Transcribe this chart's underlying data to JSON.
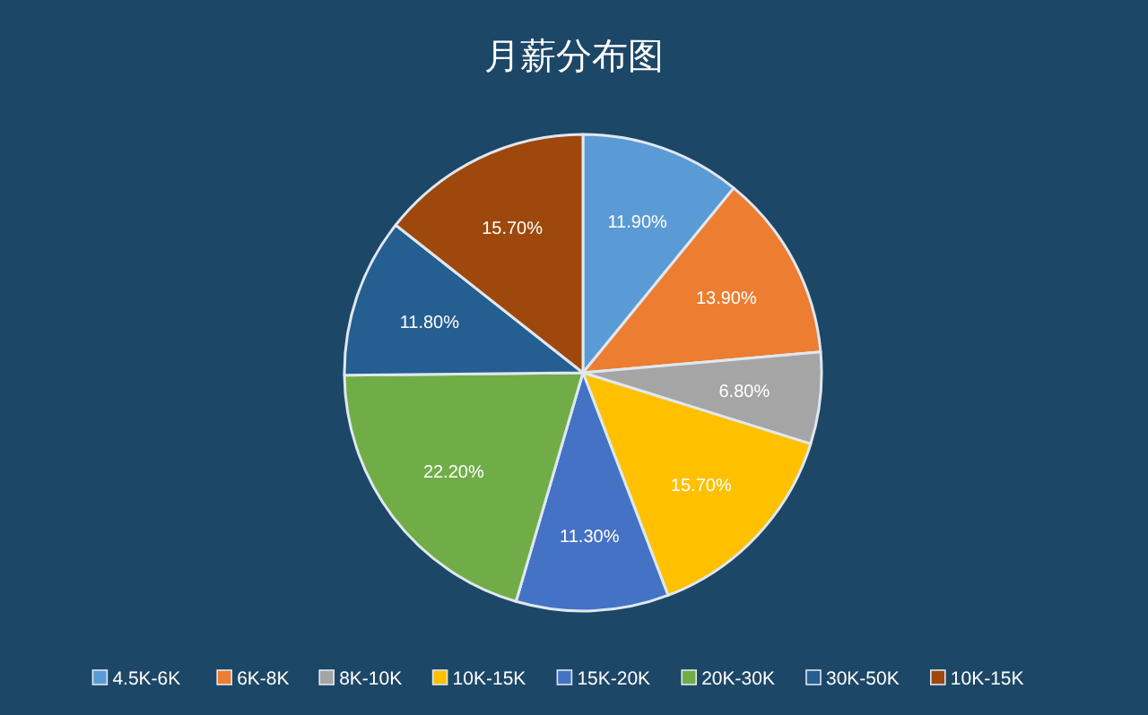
{
  "chart_data": {
    "type": "pie",
    "title": "月薪分布图",
    "categories": [
      "4.5K-6K",
      "6K-8K",
      "8K-10K",
      "10K-15K",
      "15K-20K",
      "20K-30K",
      "30K-50K",
      "10K-15K"
    ],
    "values": [
      11.9,
      13.9,
      6.8,
      15.7,
      11.3,
      22.2,
      11.8,
      15.7
    ],
    "value_labels": [
      "11.90%",
      "13.90%",
      "6.80%",
      "15.70%",
      "11.30%",
      "22.20%",
      "11.80%",
      "15.70%"
    ],
    "colors": [
      "#5b9bd5",
      "#ed7d31",
      "#a5a5a5",
      "#ffc000",
      "#4472c4",
      "#70ad47",
      "#255e91",
      "#9e480e"
    ],
    "legend": "bottom"
  }
}
